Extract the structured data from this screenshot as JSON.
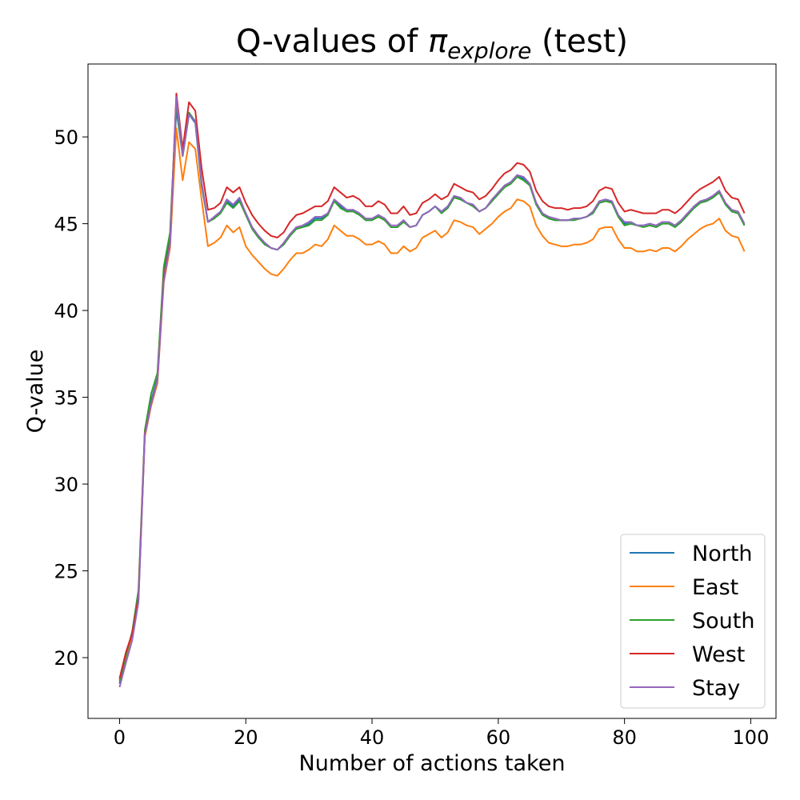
{
  "chart_data": {
    "type": "line",
    "title_prefix": "Q-values of ",
    "title_symbol": "π",
    "title_subscript": "explore",
    "title_suffix": " (test)",
    "xlabel": "Number of actions taken",
    "ylabel": "Q-value",
    "xlim": [
      -5,
      104
    ],
    "ylim": [
      16.5,
      54.2
    ],
    "xticks": [
      0,
      20,
      40,
      60,
      80,
      100
    ],
    "yticks": [
      20,
      25,
      30,
      35,
      40,
      45,
      50
    ],
    "grid": false,
    "legend_position": "lower-right",
    "x": [
      0,
      1,
      2,
      3,
      4,
      5,
      6,
      7,
      8,
      9,
      10,
      11,
      12,
      13,
      14,
      15,
      16,
      17,
      18,
      19,
      20,
      21,
      22,
      23,
      24,
      25,
      26,
      27,
      28,
      29,
      30,
      31,
      32,
      33,
      34,
      35,
      36,
      37,
      38,
      39,
      40,
      41,
      42,
      43,
      44,
      45,
      46,
      47,
      48,
      49,
      50,
      51,
      52,
      53,
      54,
      55,
      56,
      57,
      58,
      59,
      60,
      61,
      62,
      63,
      64,
      65,
      66,
      67,
      68,
      69,
      70,
      71,
      72,
      73,
      74,
      75,
      76,
      77,
      78,
      79,
      80,
      81,
      82,
      83,
      84,
      85,
      86,
      87,
      88,
      89,
      90,
      91,
      92,
      93,
      94,
      95,
      96,
      97,
      98,
      99
    ],
    "series": [
      {
        "name": "North",
        "color": "#1f77b4",
        "values": [
          18.5,
          19.8,
          21.2,
          23.6,
          32.9,
          34.8,
          36.1,
          42.2,
          44.3,
          51.6,
          48.9,
          51.3,
          50.8,
          47.2,
          45.1,
          45.3,
          45.7,
          46.3,
          46.0,
          46.4,
          45.6,
          44.8,
          44.3,
          43.9,
          43.6,
          43.5,
          43.8,
          44.3,
          44.7,
          44.8,
          45.0,
          45.3,
          45.3,
          45.6,
          46.3,
          46.0,
          45.7,
          45.8,
          45.6,
          45.2,
          45.2,
          45.5,
          45.3,
          44.8,
          44.8,
          45.2,
          44.8,
          44.9,
          45.5,
          45.7,
          46.0,
          45.7,
          46.0,
          46.6,
          46.4,
          46.2,
          46.1,
          45.7,
          45.9,
          46.3,
          46.8,
          47.2,
          47.4,
          47.8,
          47.6,
          47.3,
          46.2,
          45.6,
          45.3,
          45.2,
          45.2,
          45.2,
          45.3,
          45.3,
          45.4,
          45.6,
          46.2,
          46.3,
          46.3,
          45.5,
          45.0,
          45.1,
          44.9,
          44.9,
          45.0,
          44.9,
          45.1,
          45.1,
          44.9,
          45.2,
          45.6,
          45.9,
          46.2,
          46.4,
          46.6,
          46.9,
          46.1,
          45.7,
          45.6,
          44.9
        ]
      },
      {
        "name": "East",
        "color": "#ff7f0e",
        "values": [
          18.7,
          20.0,
          21.3,
          23.4,
          32.7,
          34.5,
          35.8,
          41.6,
          43.6,
          50.5,
          47.5,
          49.7,
          49.3,
          46.4,
          43.7,
          43.9,
          44.2,
          44.9,
          44.5,
          44.8,
          43.7,
          43.2,
          42.8,
          42.4,
          42.1,
          42.0,
          42.4,
          42.9,
          43.3,
          43.3,
          43.5,
          43.8,
          43.7,
          44.1,
          44.9,
          44.6,
          44.3,
          44.3,
          44.1,
          43.8,
          43.8,
          44.0,
          43.8,
          43.3,
          43.3,
          43.7,
          43.4,
          43.6,
          44.2,
          44.4,
          44.6,
          44.2,
          44.5,
          45.2,
          45.1,
          44.9,
          44.8,
          44.4,
          44.7,
          45.0,
          45.4,
          45.7,
          45.9,
          46.4,
          46.3,
          46.0,
          44.9,
          44.3,
          43.9,
          43.8,
          43.7,
          43.7,
          43.8,
          43.8,
          43.9,
          44.1,
          44.7,
          44.8,
          44.8,
          44.1,
          43.6,
          43.6,
          43.4,
          43.4,
          43.5,
          43.4,
          43.6,
          43.6,
          43.4,
          43.7,
          44.1,
          44.4,
          44.7,
          44.9,
          45.0,
          45.3,
          44.6,
          44.3,
          44.2,
          43.4
        ]
      },
      {
        "name": "South",
        "color": "#2ca02c",
        "values": [
          18.6,
          20.1,
          21.5,
          23.9,
          33.1,
          35.2,
          36.4,
          42.5,
          44.5,
          52.0,
          48.9,
          51.4,
          50.9,
          47.3,
          45.1,
          45.3,
          45.6,
          46.2,
          45.9,
          46.3,
          45.5,
          44.7,
          44.2,
          43.8,
          43.6,
          43.5,
          43.8,
          44.3,
          44.7,
          44.8,
          44.9,
          45.2,
          45.2,
          45.5,
          46.3,
          45.9,
          45.7,
          45.7,
          45.5,
          45.2,
          45.2,
          45.4,
          45.2,
          44.8,
          44.8,
          45.1,
          44.8,
          44.9,
          45.5,
          45.7,
          46.0,
          45.6,
          45.9,
          46.5,
          46.4,
          46.2,
          46.0,
          45.7,
          45.9,
          46.3,
          46.7,
          47.1,
          47.3,
          47.7,
          47.5,
          47.2,
          46.1,
          45.5,
          45.3,
          45.2,
          45.2,
          45.2,
          45.2,
          45.3,
          45.4,
          45.6,
          46.2,
          46.3,
          46.2,
          45.4,
          44.9,
          45.0,
          44.9,
          44.8,
          44.9,
          44.8,
          45.0,
          45.0,
          44.8,
          45.1,
          45.5,
          45.9,
          46.2,
          46.3,
          46.5,
          46.8,
          46.1,
          45.7,
          45.6,
          44.9
        ]
      },
      {
        "name": "West",
        "color": "#d62728",
        "values": [
          18.8,
          20.3,
          21.4,
          23.5,
          32.9,
          34.6,
          36.0,
          41.9,
          43.9,
          52.5,
          49.3,
          52.0,
          51.5,
          48.2,
          45.8,
          45.9,
          46.2,
          47.1,
          46.8,
          47.1,
          46.2,
          45.5,
          45.0,
          44.6,
          44.3,
          44.2,
          44.5,
          45.1,
          45.5,
          45.6,
          45.8,
          46.0,
          46.0,
          46.3,
          47.1,
          46.8,
          46.5,
          46.6,
          46.4,
          46.0,
          46.0,
          46.3,
          46.1,
          45.6,
          45.6,
          46.0,
          45.5,
          45.6,
          46.2,
          46.4,
          46.7,
          46.4,
          46.6,
          47.3,
          47.1,
          46.9,
          46.8,
          46.4,
          46.6,
          47.0,
          47.5,
          47.9,
          48.1,
          48.5,
          48.4,
          48.0,
          46.9,
          46.3,
          46.0,
          45.9,
          45.9,
          45.8,
          45.9,
          45.9,
          46.0,
          46.3,
          46.9,
          47.1,
          47.0,
          46.2,
          45.7,
          45.8,
          45.7,
          45.6,
          45.6,
          45.6,
          45.8,
          45.8,
          45.6,
          45.9,
          46.3,
          46.7,
          47.0,
          47.2,
          47.4,
          47.7,
          46.9,
          46.5,
          46.4,
          45.6
        ]
      },
      {
        "name": "Stay",
        "color": "#9467bd",
        "values": [
          18.3,
          19.7,
          21.0,
          23.2,
          32.8,
          34.6,
          36.0,
          41.7,
          43.8,
          52.3,
          48.9,
          51.3,
          50.9,
          47.4,
          45.1,
          45.4,
          45.7,
          46.4,
          46.1,
          46.5,
          45.6,
          44.8,
          44.3,
          43.9,
          43.6,
          43.5,
          43.9,
          44.4,
          44.8,
          44.9,
          45.1,
          45.4,
          45.4,
          45.6,
          46.4,
          46.1,
          45.8,
          45.8,
          45.6,
          45.3,
          45.3,
          45.5,
          45.3,
          44.9,
          44.9,
          45.2,
          44.8,
          44.9,
          45.5,
          45.7,
          46.0,
          45.7,
          46.0,
          46.6,
          46.5,
          46.2,
          46.1,
          45.7,
          45.9,
          46.4,
          46.8,
          47.2,
          47.4,
          47.8,
          47.7,
          47.3,
          46.2,
          45.6,
          45.4,
          45.3,
          45.2,
          45.2,
          45.3,
          45.3,
          45.4,
          45.7,
          46.3,
          46.4,
          46.3,
          45.5,
          45.1,
          45.1,
          44.9,
          44.9,
          45.0,
          44.9,
          45.1,
          45.1,
          44.9,
          45.2,
          45.6,
          46.0,
          46.3,
          46.4,
          46.6,
          46.9,
          46.2,
          45.8,
          45.7,
          45.0
        ]
      }
    ]
  }
}
